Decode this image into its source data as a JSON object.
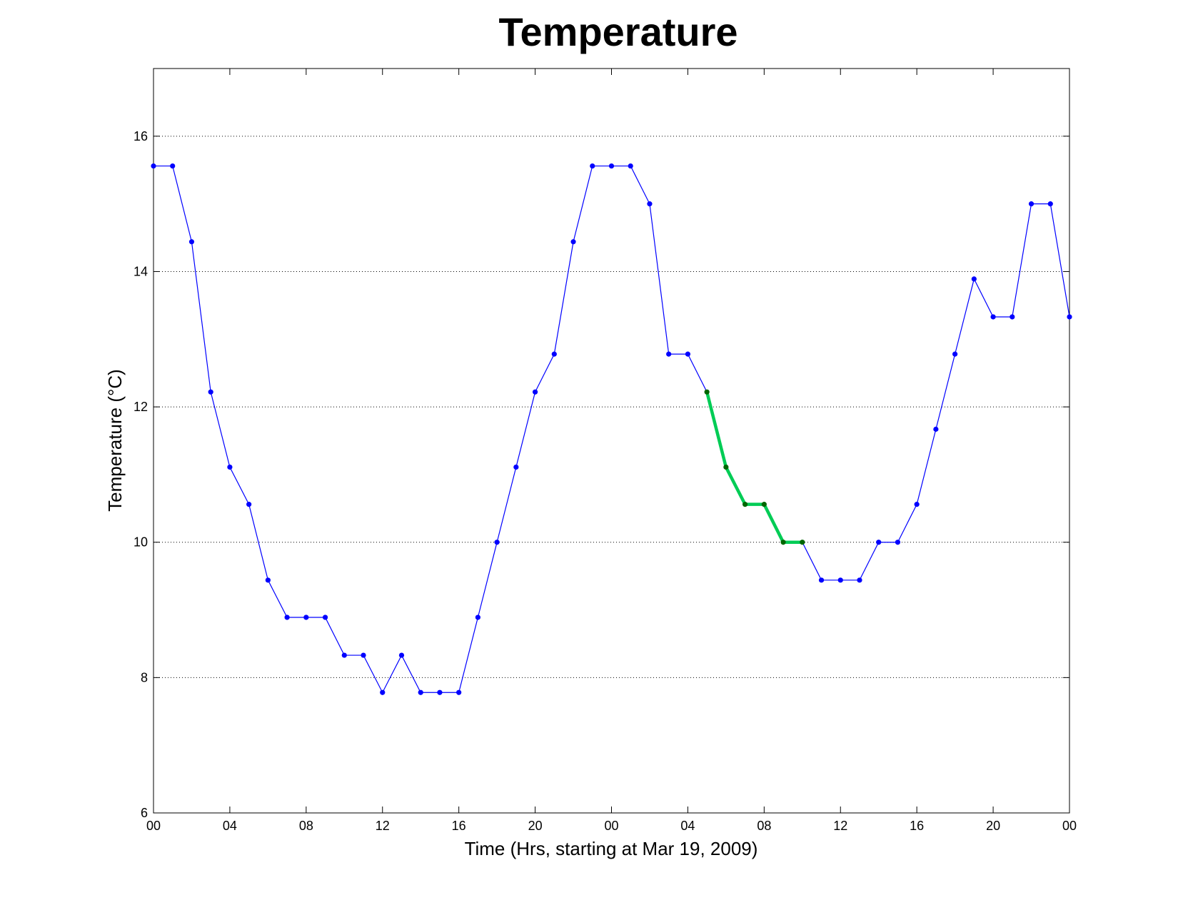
{
  "chart_data": {
    "type": "line",
    "title": "Temperature",
    "xlabel": "Time (Hrs, starting at Mar 19, 2009)",
    "ylabel": "Temperature (°C)",
    "x_hours": [
      0,
      1,
      2,
      3,
      4,
      5,
      6,
      7,
      8,
      9,
      10,
      11,
      12,
      13,
      14,
      15,
      16,
      17,
      18,
      19,
      20,
      21,
      22,
      23,
      24,
      25,
      26,
      27,
      28,
      29,
      30,
      31,
      32,
      33,
      34,
      35,
      36,
      37,
      38,
      39,
      40,
      41,
      42,
      43,
      44,
      45,
      46,
      47,
      48
    ],
    "series": [
      {
        "values": [
          15.56,
          15.56,
          14.44,
          12.22,
          11.11,
          10.56,
          9.44,
          8.89,
          8.89,
          8.89,
          8.33,
          8.33,
          7.78,
          8.33,
          7.78,
          7.78,
          7.78,
          8.89,
          10.0,
          11.11,
          12.22,
          12.78,
          14.44,
          15.56,
          15.56,
          15.56,
          15.0,
          12.78,
          12.78,
          12.22,
          11.11,
          10.56,
          10.56,
          10.0,
          10.0,
          9.44,
          9.44,
          9.44,
          10.0,
          10.0,
          10.56,
          11.67,
          12.78,
          13.89,
          13.33,
          13.33,
          15.0,
          15.0,
          13.33
        ],
        "color": "#0000ff",
        "marker_color": "#0000ff"
      },
      {
        "x_range": [
          29,
          34
        ],
        "color": "#00cc55",
        "marker_color": "#006600"
      }
    ],
    "xticks": [
      "00",
      "04",
      "08",
      "12",
      "16",
      "20",
      "00",
      "04",
      "08",
      "12",
      "16",
      "20",
      "00"
    ],
    "yticks": [
      "6",
      "8",
      "10",
      "12",
      "14",
      "16"
    ],
    "ylim": [
      6,
      17
    ],
    "xlim": [
      0,
      48
    ],
    "grid": "y-dotted"
  }
}
